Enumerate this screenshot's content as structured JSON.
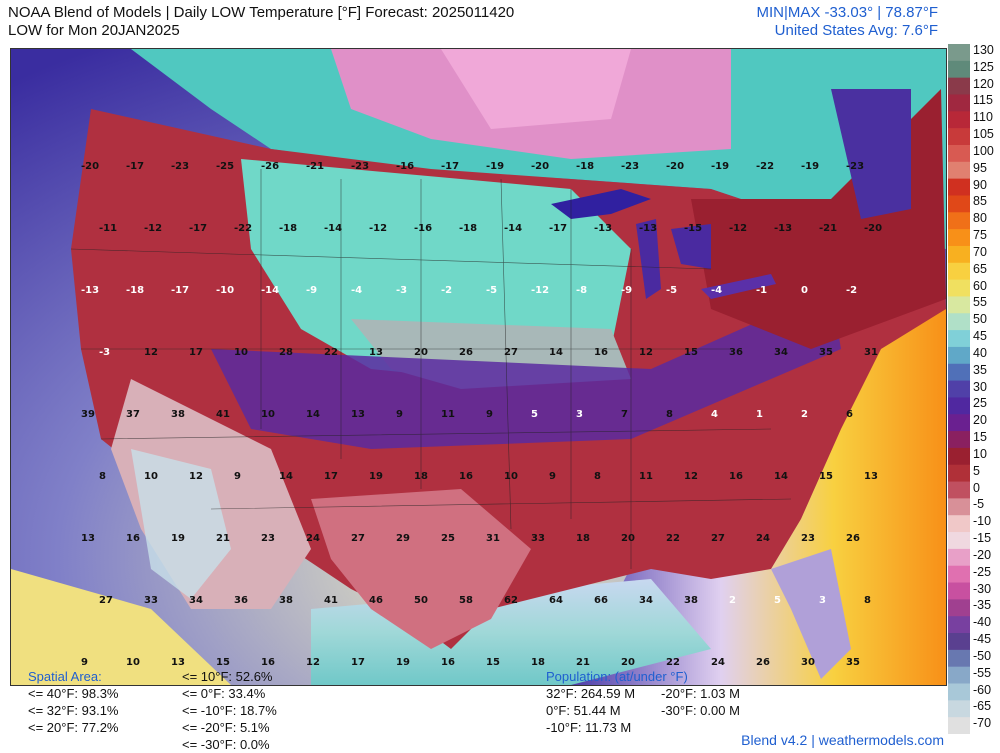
{
  "header": {
    "title": "NOAA Blend of Models | Daily LOW Temperature [°F] Forecast: 2025011420",
    "subtitle": "LOW for Mon 20JAN2025",
    "minmax": "MIN|MAX -33.03° | 78.87°F",
    "us_avg": "United States Avg: 7.6°F"
  },
  "colorbar": {
    "labels": [
      "130",
      "125",
      "120",
      "115",
      "110",
      "105",
      "100",
      "95",
      "90",
      "85",
      "80",
      "75",
      "70",
      "65",
      "60",
      "55",
      "50",
      "45",
      "40",
      "35",
      "30",
      "25",
      "20",
      "15",
      "10",
      "5",
      "0",
      "-5",
      "-10",
      "-15",
      "-20",
      "-25",
      "-30",
      "-35",
      "-40",
      "-45",
      "-50",
      "-55",
      "-60",
      "-65",
      "-70"
    ],
    "colors": [
      "#7a9a8c",
      "#5f8a7a",
      "#8a3a4a",
      "#a02840",
      "#b82838",
      "#c83a3a",
      "#d85a52",
      "#e08070",
      "#d03020",
      "#e04818",
      "#f07018",
      "#f89018",
      "#f8b020",
      "#f8d040",
      "#f0e060",
      "#d8e8a0",
      "#b0e0c8",
      "#80d0d8",
      "#60a8c8",
      "#5070b8",
      "#5040a8",
      "#5028a0",
      "#6a2090",
      "#8a2060",
      "#9a2030",
      "#b03038",
      "#c05060",
      "#d89098",
      "#f0c8c8",
      "#f0d8e0",
      "#e8a0c8",
      "#e070b0",
      "#c850a0",
      "#a04090",
      "#7840a0",
      "#5a4090",
      "#6878b0",
      "#88a8c8",
      "#a8c8d8",
      "#c8d8e0",
      "#e0e0e0"
    ]
  },
  "stats": {
    "spatial_head": "Spatial Area:",
    "spatial": [
      "<= 40°F: 98.3%",
      "<= 32°F: 93.1%",
      "<= 20°F: 77.2%"
    ],
    "spatial2": [
      "<= 10°F: 52.6%",
      "<= 0°F: 33.4%",
      "<= -10°F: 18.7%",
      "<= -20°F: 5.1%",
      "<= -30°F: 0.0%"
    ],
    "population_head": "Population: (at/under °F)",
    "population_left": [
      "32°F: 264.59 M",
      "0°F: 51.44 M",
      "-10°F: 11.73 M"
    ],
    "population_right": [
      "-20°F: 1.03 M",
      "-30°F: 0.00 M"
    ]
  },
  "footer": "Blend v4.2 | weathermodels.com",
  "map_values": [
    "-20",
    "-17",
    "-23",
    "-25",
    "-26",
    "-21",
    "-23",
    "-16",
    "-17",
    "-19",
    "-20",
    "-18",
    "-23",
    "-20",
    "-19",
    "-22",
    "-19",
    "-23",
    "-11",
    "-12",
    "-17",
    "-22",
    "-18",
    "-14",
    "-12",
    "-16",
    "-18",
    "-14",
    "-17",
    "-13",
    "-13",
    "-15",
    "-12",
    "-13",
    "-21",
    "-20",
    "-13",
    "-18",
    "-17",
    "-10",
    "-14",
    "-9",
    "-4",
    "-3",
    "-2",
    "-5",
    "-12",
    "-8",
    "-9",
    "-5",
    "-4",
    "-1",
    "0",
    "-2",
    "-3",
    "12",
    "17",
    "10",
    "28",
    "22",
    "13",
    "20",
    "26",
    "27",
    "14",
    "16",
    "12",
    "15",
    "36",
    "34",
    "35",
    "31",
    "39",
    "37",
    "38",
    "41",
    "10",
    "14",
    "13",
    "9",
    "11",
    "9",
    "5",
    "3",
    "7",
    "8",
    "4",
    "1",
    "2",
    "6",
    "8",
    "10",
    "12",
    "9",
    "14",
    "17",
    "19",
    "18",
    "16",
    "10",
    "9",
    "8",
    "11",
    "12",
    "16",
    "14",
    "15",
    "13",
    "13",
    "16",
    "19",
    "21",
    "23",
    "24",
    "27",
    "29",
    "25",
    "31",
    "33",
    "18",
    "20",
    "22",
    "27",
    "24",
    "23",
    "26",
    "27",
    "33",
    "34",
    "36",
    "38",
    "41",
    "46",
    "50",
    "58",
    "62",
    "64",
    "66",
    "34",
    "38",
    "2",
    "5",
    "3",
    "8",
    "9",
    "10",
    "13",
    "15",
    "16",
    "12",
    "17",
    "19",
    "16",
    "15",
    "18",
    "21",
    "20",
    "22",
    "24",
    "26",
    "30",
    "35"
  ]
}
